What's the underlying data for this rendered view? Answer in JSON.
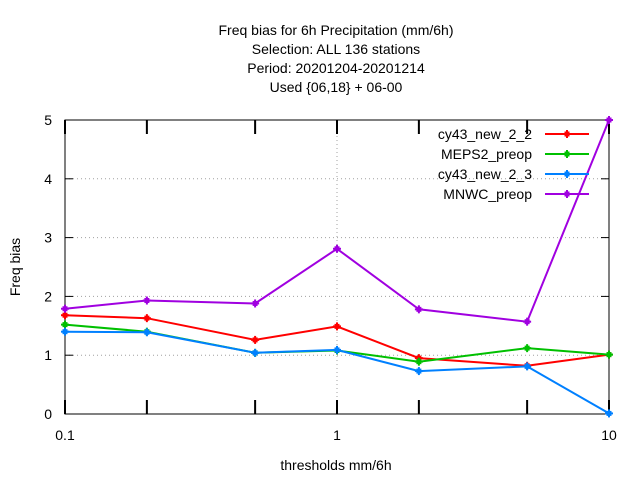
{
  "chart_data": {
    "type": "line",
    "title_lines": [
      "Freq bias  for 6h Precipitation (mm/6h)",
      "Selection: ALL    136 stations",
      "Period: 20201204-20201214",
      "Used {06,18} + 06-00"
    ],
    "xlabel": "thresholds mm/6h",
    "ylabel": "Freq bias",
    "x_scale": "log",
    "xlim": [
      0.1,
      10
    ],
    "ylim": [
      0,
      5
    ],
    "x_ticks": [
      0.1,
      1,
      10
    ],
    "x_tick_labels": [
      "0.1",
      "1",
      "10"
    ],
    "x_minor_ticks": [
      0.2,
      0.5,
      2,
      5
    ],
    "y_ticks": [
      0,
      1,
      2,
      3,
      4,
      5
    ],
    "y_tick_labels": [
      "0",
      "1",
      "2",
      "3",
      "4",
      "5"
    ],
    "grid": true,
    "legend_position": "top-right",
    "x": [
      0.1,
      0.2,
      0.5,
      1,
      2,
      5,
      10
    ],
    "series": [
      {
        "name": "cy43_new_2_2",
        "color": "#ff0000",
        "values": [
          1.68,
          1.63,
          1.26,
          1.49,
          0.95,
          0.82,
          1.01
        ]
      },
      {
        "name": "MEPS2_preop",
        "color": "#00c000",
        "values": [
          1.52,
          1.4,
          1.04,
          1.08,
          0.89,
          1.12,
          1.01
        ]
      },
      {
        "name": "cy43_new_2_3",
        "color": "#0080ff",
        "values": [
          1.4,
          1.39,
          1.04,
          1.09,
          0.73,
          0.81,
          0.01
        ]
      },
      {
        "name": "MNWC_preop",
        "color": "#a000e0",
        "values": [
          1.79,
          1.93,
          1.88,
          2.81,
          1.78,
          1.57,
          5.0
        ]
      }
    ]
  }
}
